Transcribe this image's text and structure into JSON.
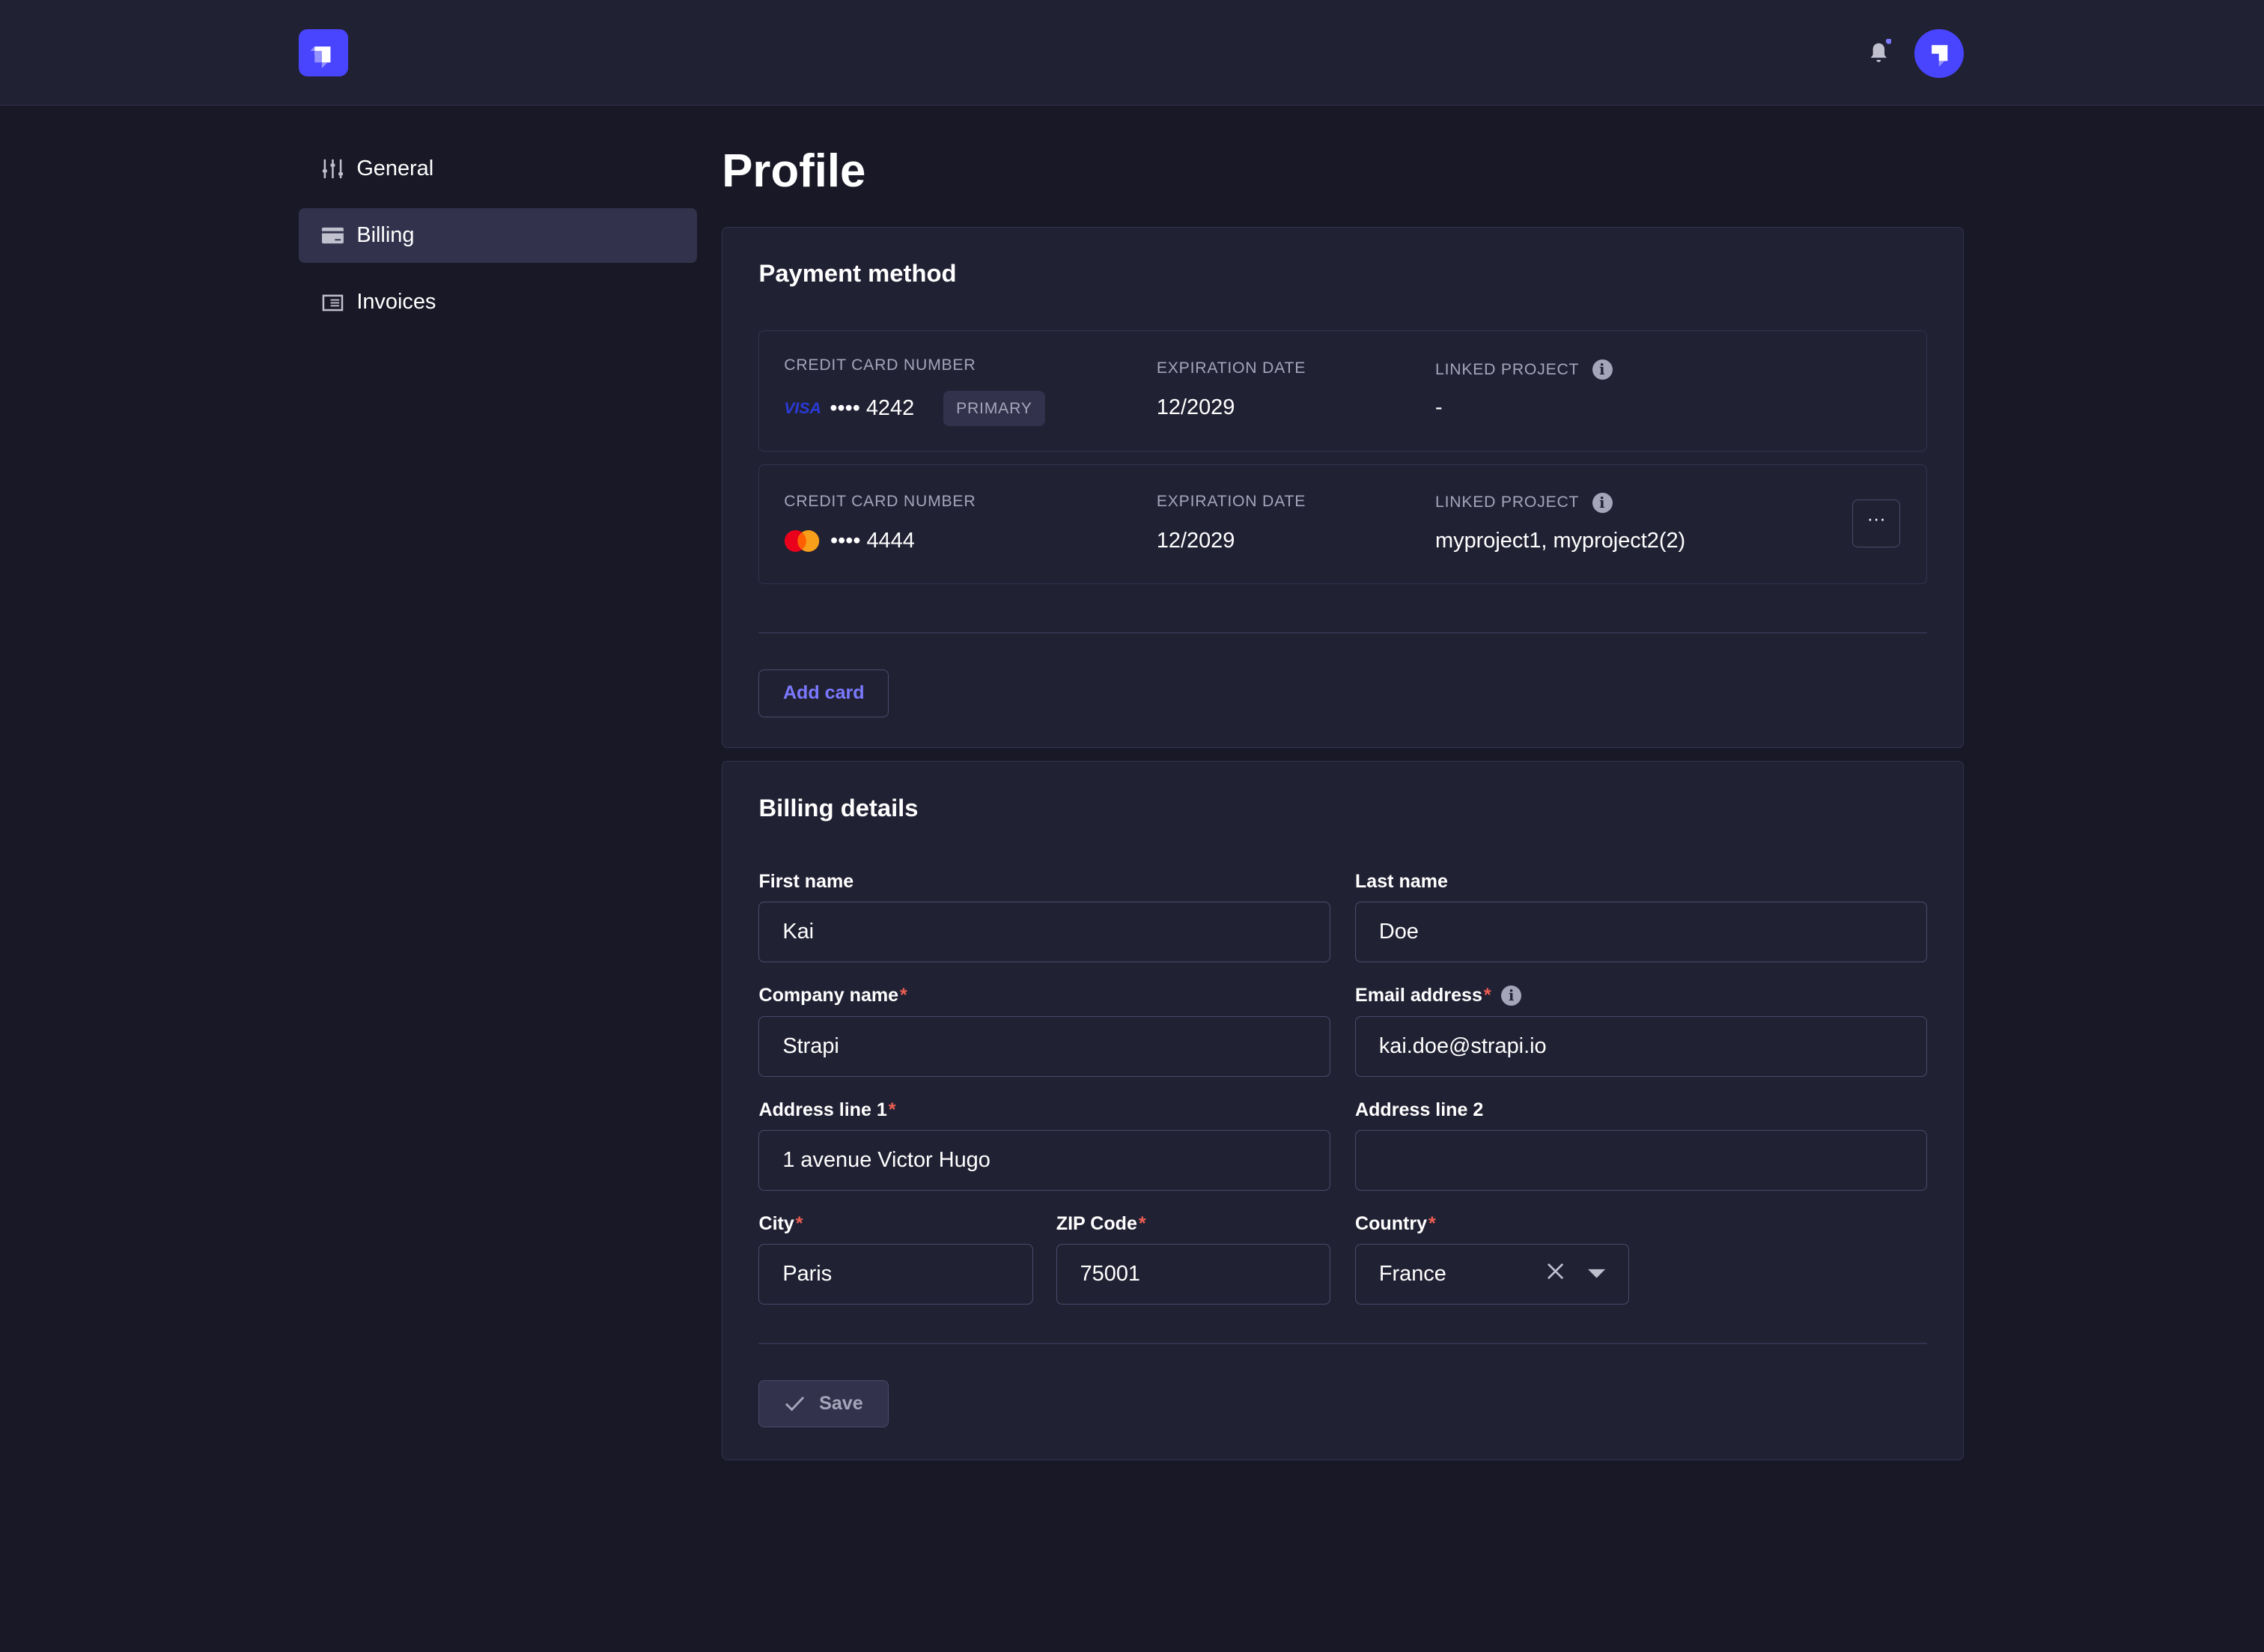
{
  "header": {
    "logo": "strapi-logo",
    "notification_icon": "bell-icon",
    "avatar": "user-avatar"
  },
  "sidebar": {
    "items": [
      {
        "label": "General",
        "icon": "sliders-icon"
      },
      {
        "label": "Billing",
        "icon": "credit-card-icon",
        "active": true
      },
      {
        "label": "Invoices",
        "icon": "invoice-icon"
      }
    ]
  },
  "page": {
    "title": "Profile"
  },
  "payment": {
    "title": "Payment method",
    "cards": [
      {
        "number_label": "CREDIT CARD NUMBER",
        "brand": "VISA",
        "masked": "•••• 4242",
        "badge": "PRIMARY",
        "exp_label": "EXPIRATION DATE",
        "exp": "12/2029",
        "linked_label": "LINKED PROJECT",
        "linked": "-"
      },
      {
        "number_label": "CREDIT CARD NUMBER",
        "brand": "mastercard",
        "masked": "•••• 4444",
        "exp_label": "EXPIRATION DATE",
        "exp": "12/2029",
        "linked_label": "LINKED PROJECT",
        "linked": "myproject1, myproject2(2)",
        "more": "···"
      }
    ],
    "add_card": "Add card"
  },
  "billing": {
    "title": "Billing details",
    "first_name": {
      "label": "First name",
      "value": "Kai"
    },
    "last_name": {
      "label": "Last name",
      "value": "Doe"
    },
    "company": {
      "label": "Company name",
      "value": "Strapi",
      "required": "*"
    },
    "email": {
      "label": "Email address",
      "value": "kai.doe@strapi.io",
      "required": "*"
    },
    "address1": {
      "label": "Address line 1",
      "value": "1 avenue Victor Hugo",
      "required": "*"
    },
    "address2": {
      "label": "Address line 2",
      "value": ""
    },
    "city": {
      "label": "City",
      "value": "Paris",
      "required": "*"
    },
    "zip": {
      "label": "ZIP Code",
      "value": "75001",
      "required": "*"
    },
    "country": {
      "label": "Country",
      "value": "France",
      "required": "*"
    },
    "save": "Save"
  },
  "colors": {
    "accent": "#4945ff",
    "link": "#7b79ff",
    "required": "#ee5e52"
  }
}
